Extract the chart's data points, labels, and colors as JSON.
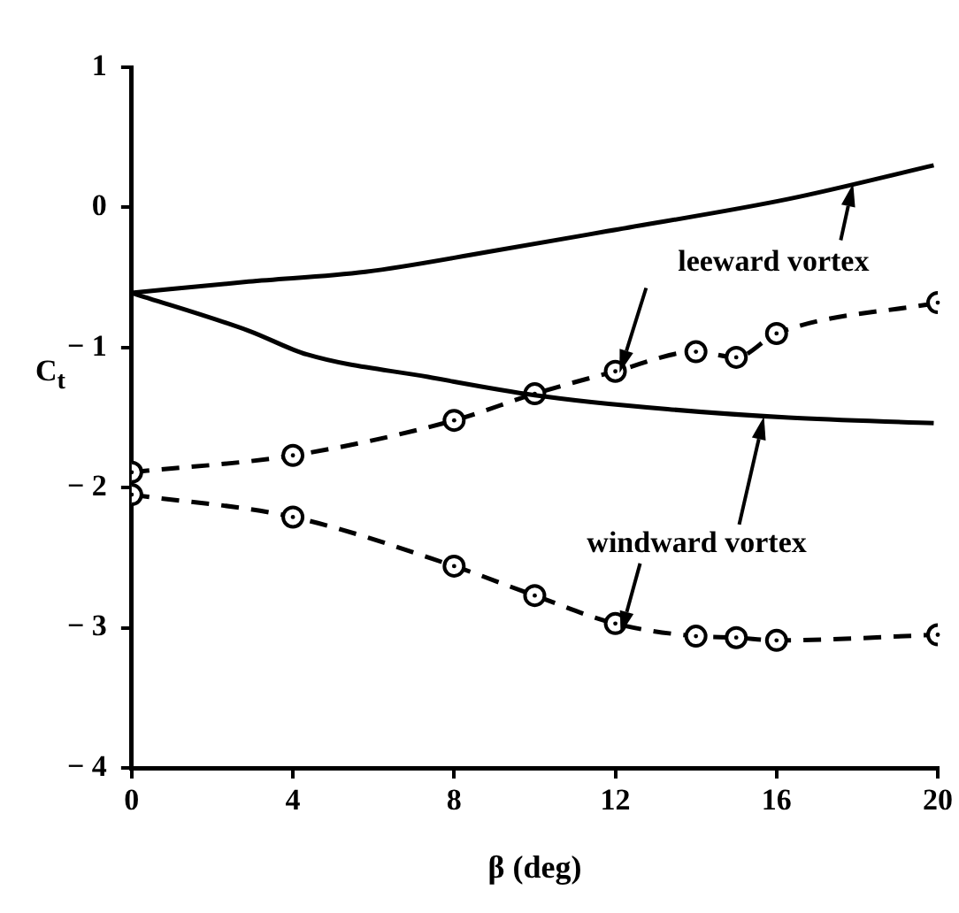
{
  "chart_data": {
    "type": "line",
    "xlabel": "β (deg)",
    "ylabel": "C$_{t}$",
    "xlim": [
      0,
      20
    ],
    "xticks": [
      0,
      4,
      8,
      12,
      16,
      20
    ],
    "ylim": [
      -4,
      1
    ],
    "yticks": [
      {
        "value": -4,
        "label": "− 4"
      },
      {
        "value": -3,
        "label": "− 3"
      },
      {
        "value": -2,
        "label": "− 2"
      },
      {
        "value": -1,
        "label": "− 1"
      },
      0,
      1
    ],
    "grid": false,
    "legend": false,
    "series": [
      {
        "color": "#000000",
        "line_style": "solid",
        "marker": "none",
        "x": [
          0,
          2.9,
          5.8,
          8.8,
          11.8,
          16.3,
          19.9
        ],
        "values": [
          -0.61,
          -0.53,
          -0.46,
          -0.32,
          -0.17,
          0.06,
          0.3
        ]
      },
      {
        "color": "#000000",
        "line_style": "solid",
        "marker": "none",
        "x": [
          0,
          2.9,
          4.35,
          7.35,
          10,
          13.3,
          16.3,
          19.9
        ],
        "values": [
          -0.61,
          -0.88,
          -1.05,
          -1.21,
          -1.34,
          -1.44,
          -1.5,
          -1.54
        ]
      },
      {
        "color": "#000000",
        "line_style": "dashed",
        "marker": "circle",
        "x": [
          0,
          4,
          8,
          10,
          12,
          14,
          15,
          16,
          20
        ],
        "values": [
          -1.89,
          -1.77,
          -1.52,
          -1.33,
          -1.17,
          -1.03,
          -1.07,
          -0.9,
          -0.68
        ]
      },
      {
        "color": "#000000",
        "line_style": "dashed",
        "marker": "circle",
        "x": [
          0,
          4,
          8,
          10,
          12,
          14,
          15,
          16,
          20
        ],
        "values": [
          -2.05,
          -2.21,
          -2.56,
          -2.77,
          -2.97,
          -3.06,
          -3.07,
          -3.09,
          -3.05
        ]
      }
    ],
    "annotations": [
      {
        "text": "leeward vortex",
        "x": 17.9,
        "y": 0.17
      },
      {
        "text": "windward vortex",
        "x": 12,
        "y": -2.97
      }
    ]
  }
}
